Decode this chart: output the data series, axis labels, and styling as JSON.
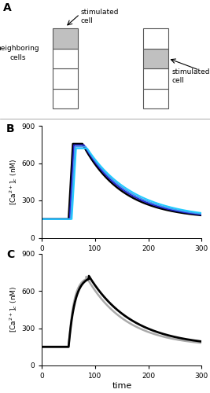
{
  "panel_A_label": "A",
  "panel_B_label": "B",
  "panel_C_label": "C",
  "neighboring_cells_text": "neighboring\ncells",
  "stimulated_cell_text_left": "stimulated\ncell",
  "stimulated_cell_text_right": "stimulated\ncell",
  "cell_colors_left": [
    "#c0c0c0",
    "#ffffff",
    "#ffffff",
    "#ffffff"
  ],
  "cell_colors_right": [
    "#ffffff",
    "#c0c0c0",
    "#ffffff",
    "#ffffff"
  ],
  "ylim": [
    0,
    900
  ],
  "xlim": [
    0,
    300
  ],
  "yticks": [
    0,
    300,
    600,
    900
  ],
  "xticks": [
    0,
    100,
    200,
    300
  ],
  "ylabel": "[Ca$^{2+}$]$_c$ (nM)",
  "xlabel": "time",
  "baseline": 150,
  "curves_B": [
    {
      "color": "#000000",
      "lw": 1.8,
      "peak": 755,
      "peak_t": 76,
      "rise_start": 50,
      "decay_tau": 75
    },
    {
      "color": "#2222cc",
      "lw": 1.4,
      "peak": 745,
      "peak_t": 79,
      "rise_start": 52,
      "decay_tau": 79
    },
    {
      "color": "#4499ee",
      "lw": 1.4,
      "peak": 732,
      "peak_t": 82,
      "rise_start": 54,
      "decay_tau": 83
    },
    {
      "color": "#22ccff",
      "lw": 1.4,
      "peak": 718,
      "peak_t": 85,
      "rise_start": 56,
      "decay_tau": 88
    }
  ],
  "curve_C_black": {
    "color": "#000000",
    "lw": 2.0,
    "peak": 720,
    "peak_t": 88,
    "rise_start": 50,
    "rise_tau": 12,
    "decay_tau": 82
  },
  "curve_C_gray": {
    "color": "#aaaaaa",
    "lw": 1.8,
    "peak": 715,
    "peak_t": 83,
    "rise_start": 50,
    "rise_tau": 10,
    "decay_tau": 75
  }
}
